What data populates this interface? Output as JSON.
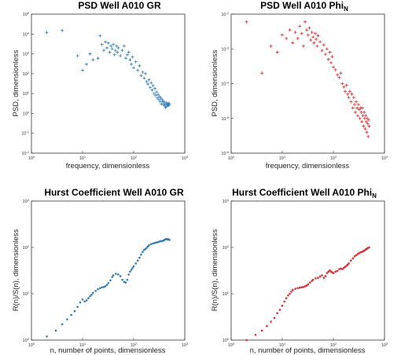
{
  "chart_data": [
    {
      "type": "scatter",
      "title": "PSD Well A010 GR",
      "title_sub": "",
      "xlabel": "frequency, dimensionless",
      "ylabel": "PSD, dimensionless",
      "xscale": "log",
      "yscale": "log",
      "xlim": [
        1,
        1000
      ],
      "ylim": [
        0.01,
        100000
      ],
      "color": "#2b7bba",
      "marker": "plus",
      "series": [
        {
          "x": [
            2,
            4,
            8,
            10,
            12,
            14,
            16,
            20,
            22,
            24,
            26,
            28,
            30,
            32,
            34,
            36,
            38,
            40,
            42,
            44,
            46,
            48,
            50,
            55,
            60,
            65,
            70,
            75,
            80,
            85,
            90,
            95,
            100,
            110,
            120,
            130,
            140,
            150,
            160,
            170,
            180,
            190,
            200,
            210,
            220,
            230,
            240,
            250,
            260,
            270,
            280,
            290,
            300,
            310,
            320,
            330,
            340,
            350,
            360,
            370,
            380,
            390,
            400,
            410,
            420,
            430,
            440,
            450,
            460,
            470,
            480,
            490,
            500
          ],
          "y": [
            12000,
            15000,
            800,
            150,
            300,
            1000,
            500,
            600,
            8000,
            3000,
            1500,
            4000,
            2000,
            3500,
            1200,
            2500,
            1800,
            3000,
            900,
            1500,
            2500,
            1200,
            2000,
            800,
            1500,
            2500,
            600,
            900,
            1200,
            500,
            300,
            700,
            200,
            400,
            150,
            250,
            80,
            120,
            60,
            100,
            40,
            30,
            50,
            20,
            35,
            15,
            25,
            10,
            18,
            8,
            12,
            6,
            9,
            5,
            7,
            4,
            6,
            3,
            5,
            4,
            3,
            4,
            2.5,
            3,
            2,
            3.5,
            2.2,
            2.8,
            3,
            2.5,
            3.2,
            2.6,
            3
          ]
        }
      ]
    },
    {
      "type": "scatter",
      "title": "PSD Well A010 Phi",
      "title_sub": "N",
      "xlabel": "frequency, dimensionless",
      "ylabel": "PSD, dimensionless",
      "xscale": "log",
      "yscale": "log",
      "xlim": [
        1,
        1000
      ],
      "ylim": [
        1e-06,
        0.01
      ],
      "color": "#e8262b",
      "marker": "plus",
      "series": [
        {
          "x": [
            2,
            4,
            6,
            8,
            10,
            12,
            14,
            16,
            18,
            20,
            22,
            24,
            26,
            28,
            30,
            32,
            34,
            36,
            38,
            40,
            42,
            44,
            46,
            48,
            50,
            55,
            60,
            65,
            70,
            75,
            80,
            85,
            90,
            95,
            100,
            110,
            120,
            130,
            140,
            150,
            160,
            170,
            180,
            190,
            200,
            210,
            220,
            230,
            240,
            250,
            260,
            270,
            280,
            290,
            300,
            310,
            320,
            330,
            340,
            350,
            360,
            370,
            380,
            390,
            400,
            410,
            420,
            430,
            440,
            450,
            460,
            470,
            480,
            490,
            500
          ],
          "y": [
            0.006,
            0.0002,
            0.0012,
            0.0008,
            0.0025,
            0.002,
            0.0035,
            0.0015,
            0.003,
            0.002,
            0.0045,
            0.0028,
            0.0012,
            0.006,
            0.0035,
            0.0025,
            0.004,
            0.0018,
            0.003,
            0.0022,
            0.0015,
            0.0028,
            0.0019,
            0.0012,
            0.0024,
            0.0016,
            0.0009,
            0.0013,
            0.0007,
            0.001,
            0.0005,
            0.0008,
            0.0004,
            0.0006,
            0.0003,
            0.00025,
            0.00018,
            0.00015,
            0.0002,
            0.0001,
            8e-05,
            6e-05,
            9e-05,
            5e-05,
            4e-05,
            6e-05,
            3e-05,
            5e-05,
            2e-05,
            4e-05,
            2.5e-05,
            1.5e-05,
            3e-05,
            2e-05,
            1.2e-05,
            2.5e-05,
            1.8e-05,
            1e-05,
            2e-05,
            1.5e-05,
            8e-06,
            2e-05,
            1.2e-05,
            6e-06,
            1.5e-05,
            1e-05,
            5e-06,
            1.2e-05,
            8e-06,
            4e-06,
            1e-05,
            7e-06,
            3e-06,
            9e-06,
            6e-06
          ]
        }
      ]
    },
    {
      "type": "scatter",
      "title": "Hurst Coefficient Well A010 GR",
      "title_sub": "",
      "xlabel": "n, number of points, dimensionless",
      "ylabel": "R(n)/S(n), dimensionless",
      "xscale": "log",
      "yscale": "log",
      "xlim": [
        1,
        1000
      ],
      "ylim": [
        1,
        1000
      ],
      "color": "#2b7bba",
      "marker": "dot",
      "series": [
        {
          "x": [
            2,
            3,
            4,
            5,
            6,
            7,
            8,
            9,
            10,
            11,
            12,
            13,
            14,
            15,
            16,
            18,
            20,
            22,
            24,
            26,
            28,
            30,
            32,
            35,
            38,
            40,
            45,
            50,
            55,
            60,
            65,
            70,
            75,
            80,
            85,
            90,
            95,
            100,
            110,
            120,
            130,
            140,
            150,
            160,
            170,
            180,
            190,
            200,
            220,
            240,
            260,
            280,
            300,
            320,
            340,
            360,
            380,
            400,
            420,
            440,
            460,
            480,
            500
          ],
          "y": [
            1.2,
            1.6,
            2.2,
            2.8,
            3.5,
            4.2,
            5.2,
            6.5,
            7.5,
            6.8,
            7.2,
            8.0,
            8.8,
            9.5,
            10.5,
            11.5,
            12.5,
            13.2,
            13.8,
            14.0,
            14.5,
            15.5,
            17.0,
            19.5,
            23.0,
            25.0,
            27.0,
            26.0,
            24.0,
            20.0,
            18.0,
            17.5,
            20.0,
            26.0,
            30.0,
            33.0,
            36.0,
            39.0,
            45.0,
            52.0,
            60.0,
            70.0,
            80.0,
            88.0,
            92.0,
            98.0,
            105.0,
            112.0,
            118.0,
            122.0,
            125.0,
            128.0,
            130.0,
            134.0,
            136.0,
            138.0,
            140.0,
            145.0,
            150.0,
            152.0,
            148.0,
            150.0,
            145.0
          ]
        }
      ]
    },
    {
      "type": "scatter",
      "title": "Hurst Coefficient Well A010 Phi",
      "title_sub": "N",
      "xlabel": "n, number of points, dimensionless",
      "ylabel": "R(n)/S(n), dimensionless",
      "xscale": "log",
      "yscale": "log",
      "xlim": [
        1,
        1000
      ],
      "ylim": [
        1,
        1000
      ],
      "color": "#e8262b",
      "marker": "dot",
      "series": [
        {
          "x": [
            2,
            3,
            4,
            5,
            6,
            7,
            8,
            9,
            10,
            11,
            12,
            13,
            14,
            15,
            16,
            18,
            20,
            22,
            24,
            26,
            28,
            30,
            32,
            35,
            38,
            40,
            45,
            50,
            55,
            60,
            65,
            70,
            75,
            80,
            85,
            90,
            95,
            100,
            110,
            120,
            130,
            140,
            150,
            160,
            170,
            180,
            190,
            200,
            220,
            240,
            260,
            280,
            300,
            320,
            340,
            360,
            380,
            400,
            420,
            440,
            460,
            480,
            500
          ],
          "y": [
            1.0,
            1.3,
            1.6,
            2.0,
            2.5,
            3.0,
            3.8,
            4.5,
            5.5,
            6.8,
            8.0,
            9.2,
            10.0,
            11.0,
            12.0,
            12.8,
            13.2,
            13.5,
            13.8,
            14.0,
            14.5,
            15.0,
            16.0,
            17.5,
            19.0,
            20.0,
            21.5,
            22.0,
            23.5,
            25.0,
            22.0,
            24.0,
            28.0,
            30.0,
            32.0,
            30.0,
            29.0,
            28.0,
            30.0,
            31.0,
            34.0,
            35.0,
            34.0,
            36.0,
            38.0,
            40.0,
            42.0,
            45.0,
            52.0,
            58.0,
            64.0,
            68.0,
            72.0,
            75.0,
            78.0,
            80.0,
            82.0,
            85.0,
            88.0,
            92.0,
            95.0,
            98.0,
            100.0
          ]
        }
      ]
    }
  ]
}
